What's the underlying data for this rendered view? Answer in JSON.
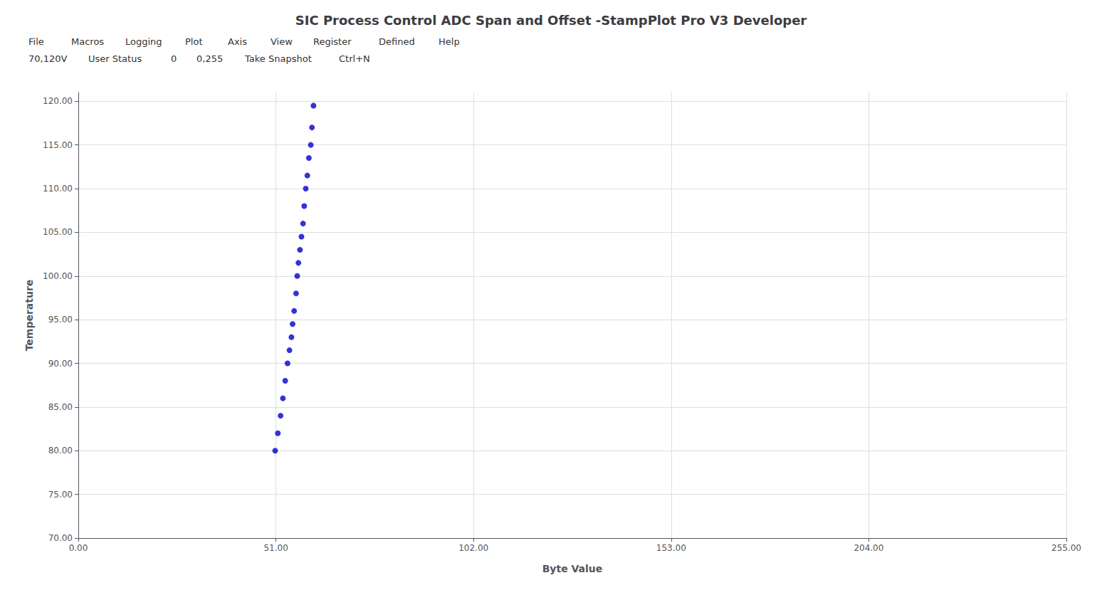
{
  "chart_data": {
    "type": "scatter",
    "title": "SIC Process Control ADC Span and Offset -StampPlot Pro V3 Developer",
    "xlabel": "Byte Value",
    "ylabel": "Temperature",
    "x": [
      50.8,
      51.5,
      52.2,
      52.8,
      53.4,
      54.0,
      54.5,
      55.0,
      55.3,
      55.7,
      56.2,
      56.5,
      56.8,
      57.2,
      57.6,
      58.0,
      58.3,
      58.7,
      59.1,
      59.5,
      60.0,
      60.3,
      60.7
    ],
    "values": [
      80.0,
      82.0,
      84.0,
      86.0,
      88.0,
      90.0,
      91.5,
      93.0,
      94.5,
      96.0,
      98.0,
      100.0,
      101.5,
      103.0,
      104.5,
      106.0,
      108.0,
      110.0,
      111.5,
      113.5,
      115.0,
      117.0,
      119.5
    ],
    "color": "#0000cc",
    "xlim": [
      0,
      255
    ],
    "ylim": [
      70,
      121
    ],
    "xticks": [
      {
        "value": 0,
        "label": "0.00"
      },
      {
        "value": 51,
        "label": "51.00"
      },
      {
        "value": 102,
        "label": "102.00"
      },
      {
        "value": 153,
        "label": "153.00"
      },
      {
        "value": 204,
        "label": "204.00"
      },
      {
        "value": 255,
        "label": "255.00"
      }
    ],
    "yticks": [
      {
        "value": 70,
        "label": "70.00"
      },
      {
        "value": 75,
        "label": "75.00"
      },
      {
        "value": 80,
        "label": "80.00"
      },
      {
        "value": 85,
        "label": "85.00"
      },
      {
        "value": 90,
        "label": "90.00"
      },
      {
        "value": 95,
        "label": "95.00"
      },
      {
        "value": 100,
        "label": "100.00"
      },
      {
        "value": 105,
        "label": "105.00"
      },
      {
        "value": 110,
        "label": "110.00"
      },
      {
        "value": 115,
        "label": "115.00"
      },
      {
        "value": 120,
        "label": "120.00"
      }
    ],
    "grid": true,
    "annotations": [
      [
        "File",
        "Macros",
        "Logging",
        "Plot",
        "Axis",
        "View",
        "Register",
        "Defined",
        "Help"
      ],
      [
        "70,120V",
        "User Status",
        "0",
        "0,255",
        "Take Snapshot",
        "Ctrl+N"
      ]
    ]
  }
}
